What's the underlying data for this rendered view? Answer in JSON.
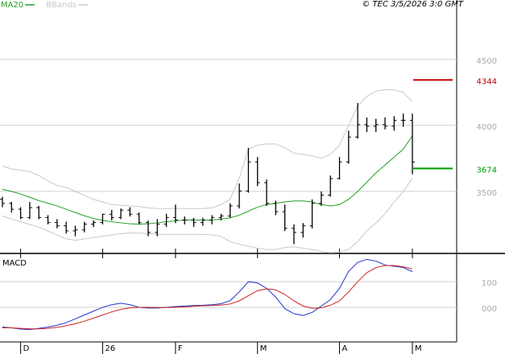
{
  "chart_data": [
    {
      "type": "ohlc",
      "legend": [
        {
          "name": "MA20",
          "color": "#22a022"
        },
        {
          "name": "BBands",
          "color": "#c8c8c8"
        }
      ],
      "annotation": "© TEC 3/5/2026 3:0 GMT",
      "ylim": [
        3030,
        4950
      ],
      "yticks": [
        3500,
        4000,
        4500
      ],
      "grid": true,
      "ohlc": {
        "color": "#000000",
        "open": [
          3440,
          3409,
          3365,
          3302,
          3377,
          3302,
          3264,
          3239,
          3201,
          3208,
          3252,
          3264,
          3327,
          3302,
          3358,
          3327,
          3264,
          3189,
          3252,
          3302,
          3283,
          3283,
          3264,
          3283,
          3302,
          3314,
          3390,
          3503,
          3723,
          3566,
          3409,
          3346,
          3220,
          3189,
          3239,
          3409,
          3472,
          3597,
          3723,
          3912,
          4006,
          3994,
          4006,
          3994,
          4038,
          4038
        ],
        "high": [
          3460,
          3420,
          3380,
          3420,
          3390,
          3320,
          3290,
          3270,
          3240,
          3270,
          3280,
          3330,
          3360,
          3370,
          3380,
          3340,
          3280,
          3290,
          3330,
          3400,
          3310,
          3300,
          3300,
          3320,
          3330,
          3410,
          3560,
          3830,
          3760,
          3590,
          3430,
          3400,
          3250,
          3260,
          3440,
          3500,
          3620,
          3760,
          3960,
          4170,
          4060,
          4050,
          4060,
          4070,
          4090,
          4090
        ],
        "low": [
          3380,
          3340,
          3290,
          3290,
          3290,
          3250,
          3220,
          3180,
          3160,
          3190,
          3230,
          3250,
          3280,
          3290,
          3310,
          3250,
          3160,
          3160,
          3230,
          3260,
          3250,
          3230,
          3240,
          3250,
          3280,
          3300,
          3370,
          3490,
          3540,
          3390,
          3320,
          3200,
          3100,
          3150,
          3220,
          3390,
          3460,
          3590,
          3710,
          3900,
          3950,
          3950,
          3970,
          3960,
          3990,
          3630
        ],
        "close": [
          3409,
          3365,
          3302,
          3377,
          3302,
          3264,
          3239,
          3201,
          3208,
          3252,
          3264,
          3327,
          3302,
          3358,
          3327,
          3264,
          3189,
          3252,
          3302,
          3283,
          3283,
          3264,
          3283,
          3302,
          3314,
          3390,
          3503,
          3723,
          3566,
          3409,
          3346,
          3220,
          3189,
          3239,
          3409,
          3472,
          3597,
          3723,
          3912,
          4006,
          3994,
          4006,
          3994,
          4038,
          4038,
          3723
        ]
      },
      "series": [
        {
          "name": "MA20",
          "color": "#22a022",
          "values": [
            3516,
            3500,
            3480,
            3455,
            3430,
            3410,
            3390,
            3365,
            3340,
            3315,
            3295,
            3280,
            3270,
            3262,
            3255,
            3252,
            3255,
            3262,
            3270,
            3278,
            3283,
            3283,
            3283,
            3283,
            3290,
            3300,
            3320,
            3350,
            3380,
            3400,
            3410,
            3420,
            3428,
            3428,
            3420,
            3400,
            3390,
            3400,
            3440,
            3500,
            3570,
            3640,
            3700,
            3760,
            3820,
            3920
          ]
        },
        {
          "name": "BBands",
          "color": "#c8c8c8",
          "upper": [
            3692,
            3670,
            3660,
            3650,
            3620,
            3580,
            3545,
            3530,
            3500,
            3470,
            3440,
            3420,
            3400,
            3395,
            3390,
            3385,
            3375,
            3370,
            3370,
            3370,
            3370,
            3370,
            3370,
            3375,
            3400,
            3440,
            3600,
            3820,
            3850,
            3860,
            3860,
            3830,
            3790,
            3780,
            3770,
            3750,
            3780,
            3850,
            4000,
            4150,
            4220,
            4260,
            4270,
            4270,
            4250,
            4180
          ],
          "lower": [
            3314,
            3290,
            3270,
            3250,
            3230,
            3200,
            3170,
            3140,
            3130,
            3140,
            3150,
            3160,
            3170,
            3180,
            3185,
            3185,
            3180,
            3175,
            3175,
            3175,
            3175,
            3175,
            3175,
            3170,
            3160,
            3120,
            3100,
            3085,
            3070,
            3060,
            3060,
            3075,
            3080,
            3070,
            3060,
            3045,
            3035,
            3040,
            3060,
            3120,
            3200,
            3260,
            3330,
            3420,
            3500,
            3600
          ]
        }
      ],
      "levels": [
        {
          "value": 4344,
          "color": "#c00000"
        },
        {
          "value": 3674,
          "color": "#009a00"
        }
      ]
    },
    {
      "type": "line",
      "title": "MACD",
      "categories": [
        null,
        null,
        "D",
        null,
        null,
        null,
        null,
        null,
        null,
        null,
        null,
        "26",
        null,
        null,
        null,
        null,
        null,
        null,
        null,
        "F",
        null,
        null,
        null,
        null,
        null,
        null,
        null,
        null,
        "M",
        null,
        null,
        null,
        null,
        null,
        null,
        null,
        null,
        "A",
        null,
        null,
        null,
        null,
        null,
        null,
        null,
        "M"
      ],
      "ylim": [
        -135,
        210
      ],
      "yticks": [
        {
          "value": 0,
          "label": "000"
        },
        100
      ],
      "series": [
        {
          "color": "#2233cc",
          "values": [
            -77,
            -80,
            -85,
            -87,
            -82,
            -77,
            -70,
            -60,
            -45,
            -30,
            -15,
            0,
            10,
            16,
            10,
            0,
            -3,
            -3,
            0,
            3,
            5,
            7,
            8,
            10,
            14,
            26,
            60,
            100,
            95,
            74,
            40,
            -5,
            -25,
            -32,
            -20,
            5,
            30,
            74,
            140,
            175,
            187,
            180,
            165,
            160,
            155,
            139
          ]
        },
        {
          "color": "#cc2222",
          "values": [
            -80,
            -80,
            -82,
            -84,
            -84,
            -82,
            -78,
            -72,
            -64,
            -54,
            -42,
            -30,
            -18,
            -8,
            -2,
            0,
            0,
            -1,
            -1,
            0,
            2,
            4,
            6,
            7,
            9,
            13,
            25,
            45,
            65,
            72,
            68,
            50,
            25,
            5,
            -4,
            -2,
            8,
            25,
            60,
            100,
            135,
            155,
            163,
            163,
            158,
            150
          ]
        }
      ]
    }
  ]
}
